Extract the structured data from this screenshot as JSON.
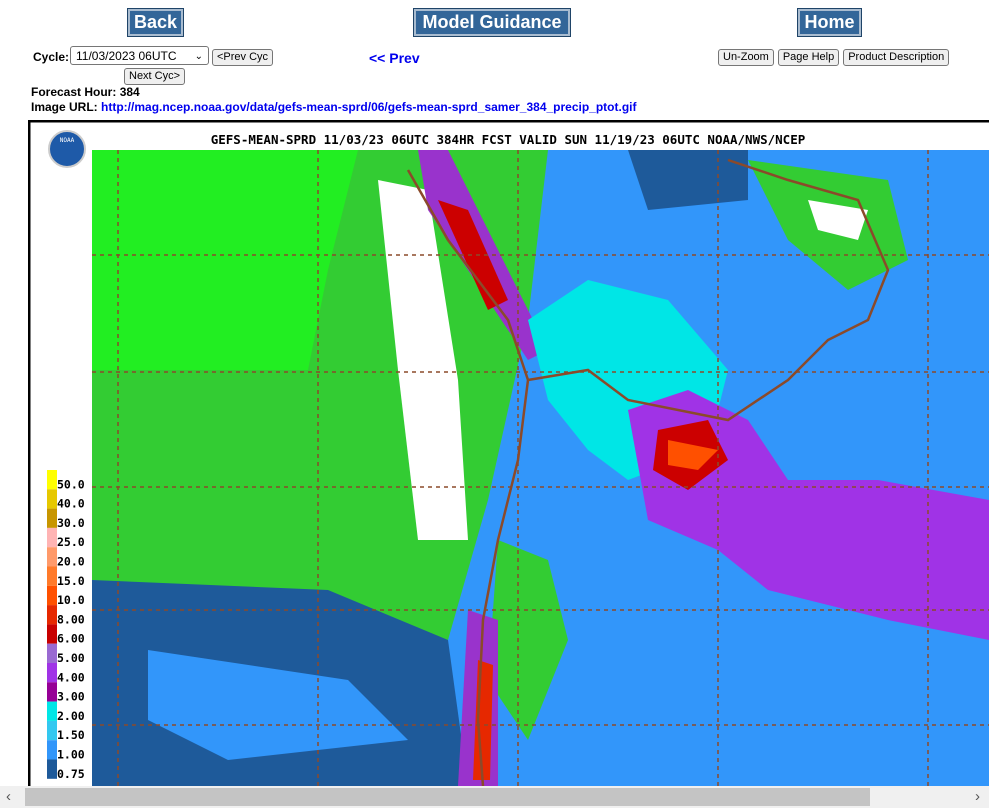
{
  "nav": {
    "back": "Back",
    "model_guidance": "Model Guidance",
    "home": "Home"
  },
  "cycle": {
    "label": "Cycle:",
    "selected": "11/03/2023 06UTC",
    "prev_cyc": "<Prev Cyc",
    "next_cyc": "Next Cyc>"
  },
  "prev_link": "<< Prev",
  "tools": [
    "Un-Zoom",
    "Page Help",
    "Product Description"
  ],
  "forecast_hour": {
    "label": "Forecast Hour:",
    "value": 384
  },
  "image_url": {
    "label": "Image URL:",
    "url": "http://mag.ncep.noaa.gov/data/gefs-mean-sprd/06/gefs-mean-sprd_samer_384_precip_ptot.gif"
  },
  "map": {
    "title": "GEFS-MEAN-SPRD 11/03/23 06UTC 384HR FCST VALID SUN 11/19/23 06UTC NOAA/NWS/NCEP",
    "logo": "NOAA",
    "legend": [
      {
        "label": "50.0",
        "color": "#ffff00"
      },
      {
        "label": "40.0",
        "color": "#e6c800"
      },
      {
        "label": "30.0",
        "color": "#c89600"
      },
      {
        "label": "25.0",
        "color": "#ffb4b4"
      },
      {
        "label": "20.0",
        "color": "#ff9a6a"
      },
      {
        "label": "15.0",
        "color": "#ff7a2a"
      },
      {
        "label": "10.0",
        "color": "#ff5000"
      },
      {
        "label": "8.00",
        "color": "#e62800"
      },
      {
        "label": "6.00",
        "color": "#c80000"
      },
      {
        "label": "5.00",
        "color": "#9a6ad2"
      },
      {
        "label": "4.00",
        "color": "#a033e6"
      },
      {
        "label": "3.00",
        "color": "#960096"
      },
      {
        "label": "2.00",
        "color": "#00e6e6"
      },
      {
        "label": "1.50",
        "color": "#33c8f0"
      },
      {
        "label": "1.00",
        "color": "#3296fa"
      },
      {
        "label": "0.75",
        "color": "#1e5a9a"
      }
    ]
  }
}
